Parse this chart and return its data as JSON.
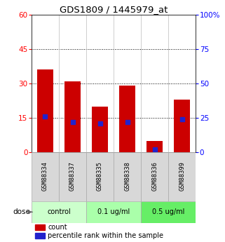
{
  "title": "GDS1809 / 1445979_at",
  "samples": [
    "GSM88334",
    "GSM88337",
    "GSM88335",
    "GSM88338",
    "GSM88336",
    "GSM88399"
  ],
  "count_values": [
    36,
    31,
    20,
    29,
    5,
    23
  ],
  "percentile_values": [
    26,
    22,
    21,
    22,
    2,
    24
  ],
  "bar_color": "#cc0000",
  "dot_color": "#2222cc",
  "left_ylim": [
    0,
    60
  ],
  "right_ylim": [
    0,
    100
  ],
  "left_yticks": [
    0,
    15,
    30,
    45,
    60
  ],
  "right_yticks": [
    0,
    25,
    50,
    75,
    100
  ],
  "right_yticklabels": [
    "0",
    "25",
    "50",
    "75",
    "100%"
  ],
  "groups": [
    {
      "label": "control",
      "indices": [
        0,
        1
      ],
      "color": "#ccffcc"
    },
    {
      "label": "0.1 ug/ml",
      "indices": [
        2,
        3
      ],
      "color": "#aaffaa"
    },
    {
      "label": "0.5 ug/ml",
      "indices": [
        4,
        5
      ],
      "color": "#66ee66"
    }
  ],
  "dose_label": "dose",
  "legend_count_label": "count",
  "legend_percentile_label": "percentile rank within the sample",
  "grid_yticks": [
    15,
    30,
    45
  ],
  "bar_width": 0.6,
  "background_color": "#ffffff",
  "sample_box_color": "#d8d8d8",
  "sample_box_edge": "#aaaaaa"
}
